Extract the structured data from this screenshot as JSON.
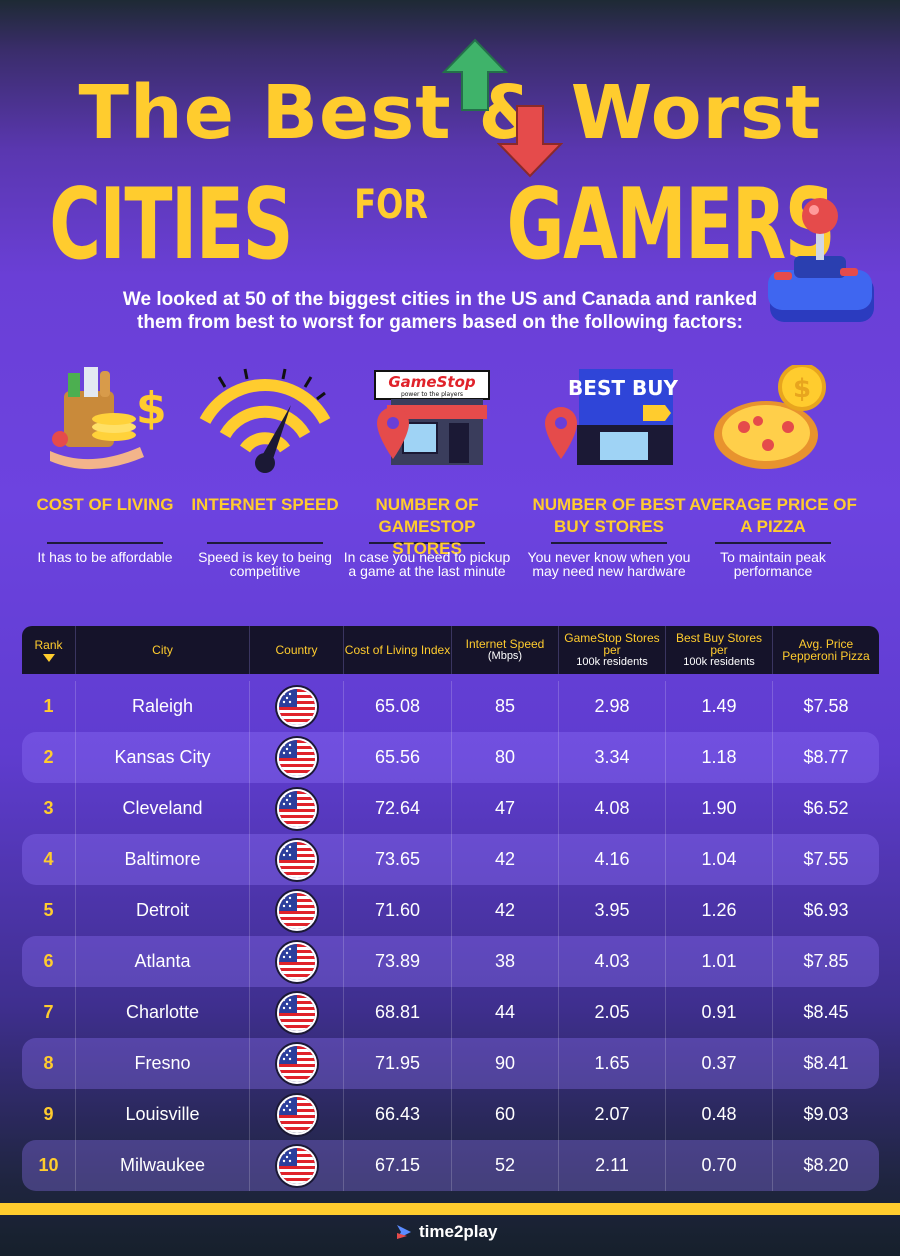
{
  "title": {
    "line1": "The Best & Worst",
    "line2_a": "CITIES",
    "line2_for": "FOR",
    "line2_b": "GAMERS"
  },
  "intro": "We looked at 50 of the biggest cities in the US and Canada and ranked them from best to worst for gamers based on the following factors:",
  "factors": [
    {
      "title": "COST OF LIVING",
      "desc": "It has to be affordable",
      "icon": "money-bag-icon"
    },
    {
      "title": "INTERNET SPEED",
      "desc": "Speed is key to being competitive",
      "icon": "wifi-speedometer-icon"
    },
    {
      "title": "NUMBER OF GAMESTOP STORES",
      "desc": "In case you need to pickup a game at the last minute",
      "icon": "gamestop-store-icon",
      "brand": "GameStop",
      "tagline": "power to the players"
    },
    {
      "title": "NUMBER OF BEST BUY STORES",
      "desc": "You never know when you may need new hardware",
      "icon": "best-buy-store-icon",
      "brand": "BEST BUY"
    },
    {
      "title": "AVERAGE PRICE OF A PIZZA",
      "desc": "To maintain peak performance",
      "icon": "pizza-coin-icon"
    }
  ],
  "table": {
    "headers": {
      "rank": "Rank",
      "city": "City",
      "country": "Country",
      "col": "Cost of Living Index",
      "net": "Internet Speed",
      "net_unit": "(Mbps)",
      "gs": "GameStop Stores per",
      "gs_sub": "100k residents",
      "bb": "Best Buy Stores per",
      "bb_sub": "100k residents",
      "pz": "Avg. Price Pepperoni Pizza"
    },
    "rows": [
      {
        "rank": "1",
        "city": "Raleigh",
        "country": "us-flag",
        "col": "65.08",
        "net": "85",
        "gs": "2.98",
        "bb": "1.49",
        "pz": "$7.58"
      },
      {
        "rank": "2",
        "city": "Kansas City",
        "country": "us-flag",
        "col": "65.56",
        "net": "80",
        "gs": "3.34",
        "bb": "1.18",
        "pz": "$8.77"
      },
      {
        "rank": "3",
        "city": "Cleveland",
        "country": "us-flag",
        "col": "72.64",
        "net": "47",
        "gs": "4.08",
        "bb": "1.90",
        "pz": "$6.52"
      },
      {
        "rank": "4",
        "city": "Baltimore",
        "country": "us-flag",
        "col": "73.65",
        "net": "42",
        "gs": "4.16",
        "bb": "1.04",
        "pz": "$7.55"
      },
      {
        "rank": "5",
        "city": "Detroit",
        "country": "us-flag",
        "col": "71.60",
        "net": "42",
        "gs": "3.95",
        "bb": "1.26",
        "pz": "$6.93"
      },
      {
        "rank": "6",
        "city": "Atlanta",
        "country": "us-flag",
        "col": "73.89",
        "net": "38",
        "gs": "4.03",
        "bb": "1.01",
        "pz": "$7.85"
      },
      {
        "rank": "7",
        "city": "Charlotte",
        "country": "us-flag",
        "col": "68.81",
        "net": "44",
        "gs": "2.05",
        "bb": "0.91",
        "pz": "$8.45"
      },
      {
        "rank": "8",
        "city": "Fresno",
        "country": "us-flag",
        "col": "71.95",
        "net": "90",
        "gs": "1.65",
        "bb": "0.37",
        "pz": "$8.41"
      },
      {
        "rank": "9",
        "city": "Louisville",
        "country": "us-flag",
        "col": "66.43",
        "net": "60",
        "gs": "2.07",
        "bb": "0.48",
        "pz": "$9.03"
      },
      {
        "rank": "10",
        "city": "Milwaukee",
        "country": "us-flag",
        "col": "67.15",
        "net": "52",
        "gs": "2.11",
        "bb": "0.70",
        "pz": "$8.20"
      }
    ]
  },
  "brand": {
    "name": "time2play"
  },
  "colors": {
    "accent": "#ffcc2e",
    "header_bg": "#15132a",
    "bg": "#6a3fd6"
  }
}
